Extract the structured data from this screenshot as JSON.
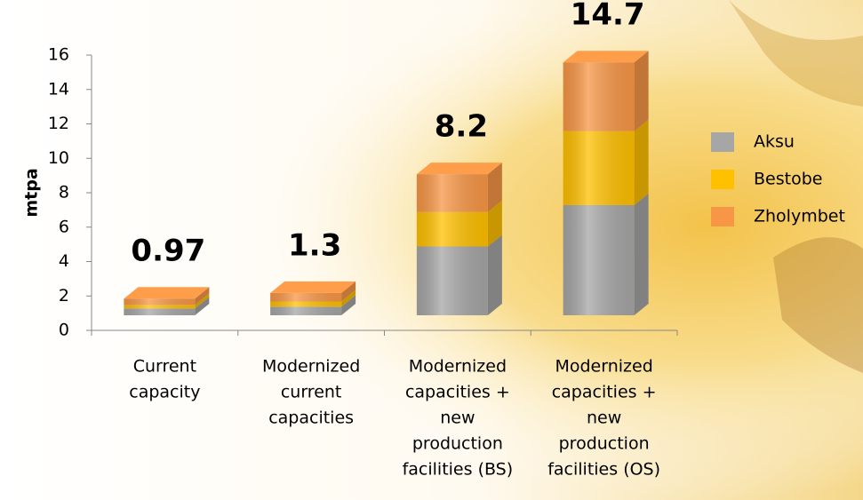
{
  "chart_data": {
    "type": "stacked_bar_3d",
    "y_label": "mtpa",
    "categories": [
      [
        "Current",
        "capacity"
      ],
      [
        "Modernized",
        "current",
        "capacities"
      ],
      [
        "Modernized",
        "capacities +",
        "new",
        "production",
        "facilities (BS)"
      ],
      [
        "Modernized",
        "capacities +",
        "new",
        "production",
        "facilities (OS)"
      ]
    ],
    "series": [
      {
        "name": "Aksu",
        "color": "#a6a6a6",
        "values": [
          0.4,
          0.5,
          4.0,
          6.4
        ]
      },
      {
        "name": "Bestobe",
        "color": "#ffc000",
        "values": [
          0.2,
          0.3,
          2.0,
          4.3
        ]
      },
      {
        "name": "Zholymbet",
        "color": "#f79646",
        "values": [
          0.37,
          0.5,
          2.2,
          4.0
        ]
      }
    ],
    "totals": [
      0.97,
      1.3,
      8.2,
      14.7
    ],
    "ylim": [
      0,
      16
    ],
    "yticks": [
      0,
      2,
      4,
      6,
      8,
      10,
      12,
      14,
      16
    ]
  }
}
